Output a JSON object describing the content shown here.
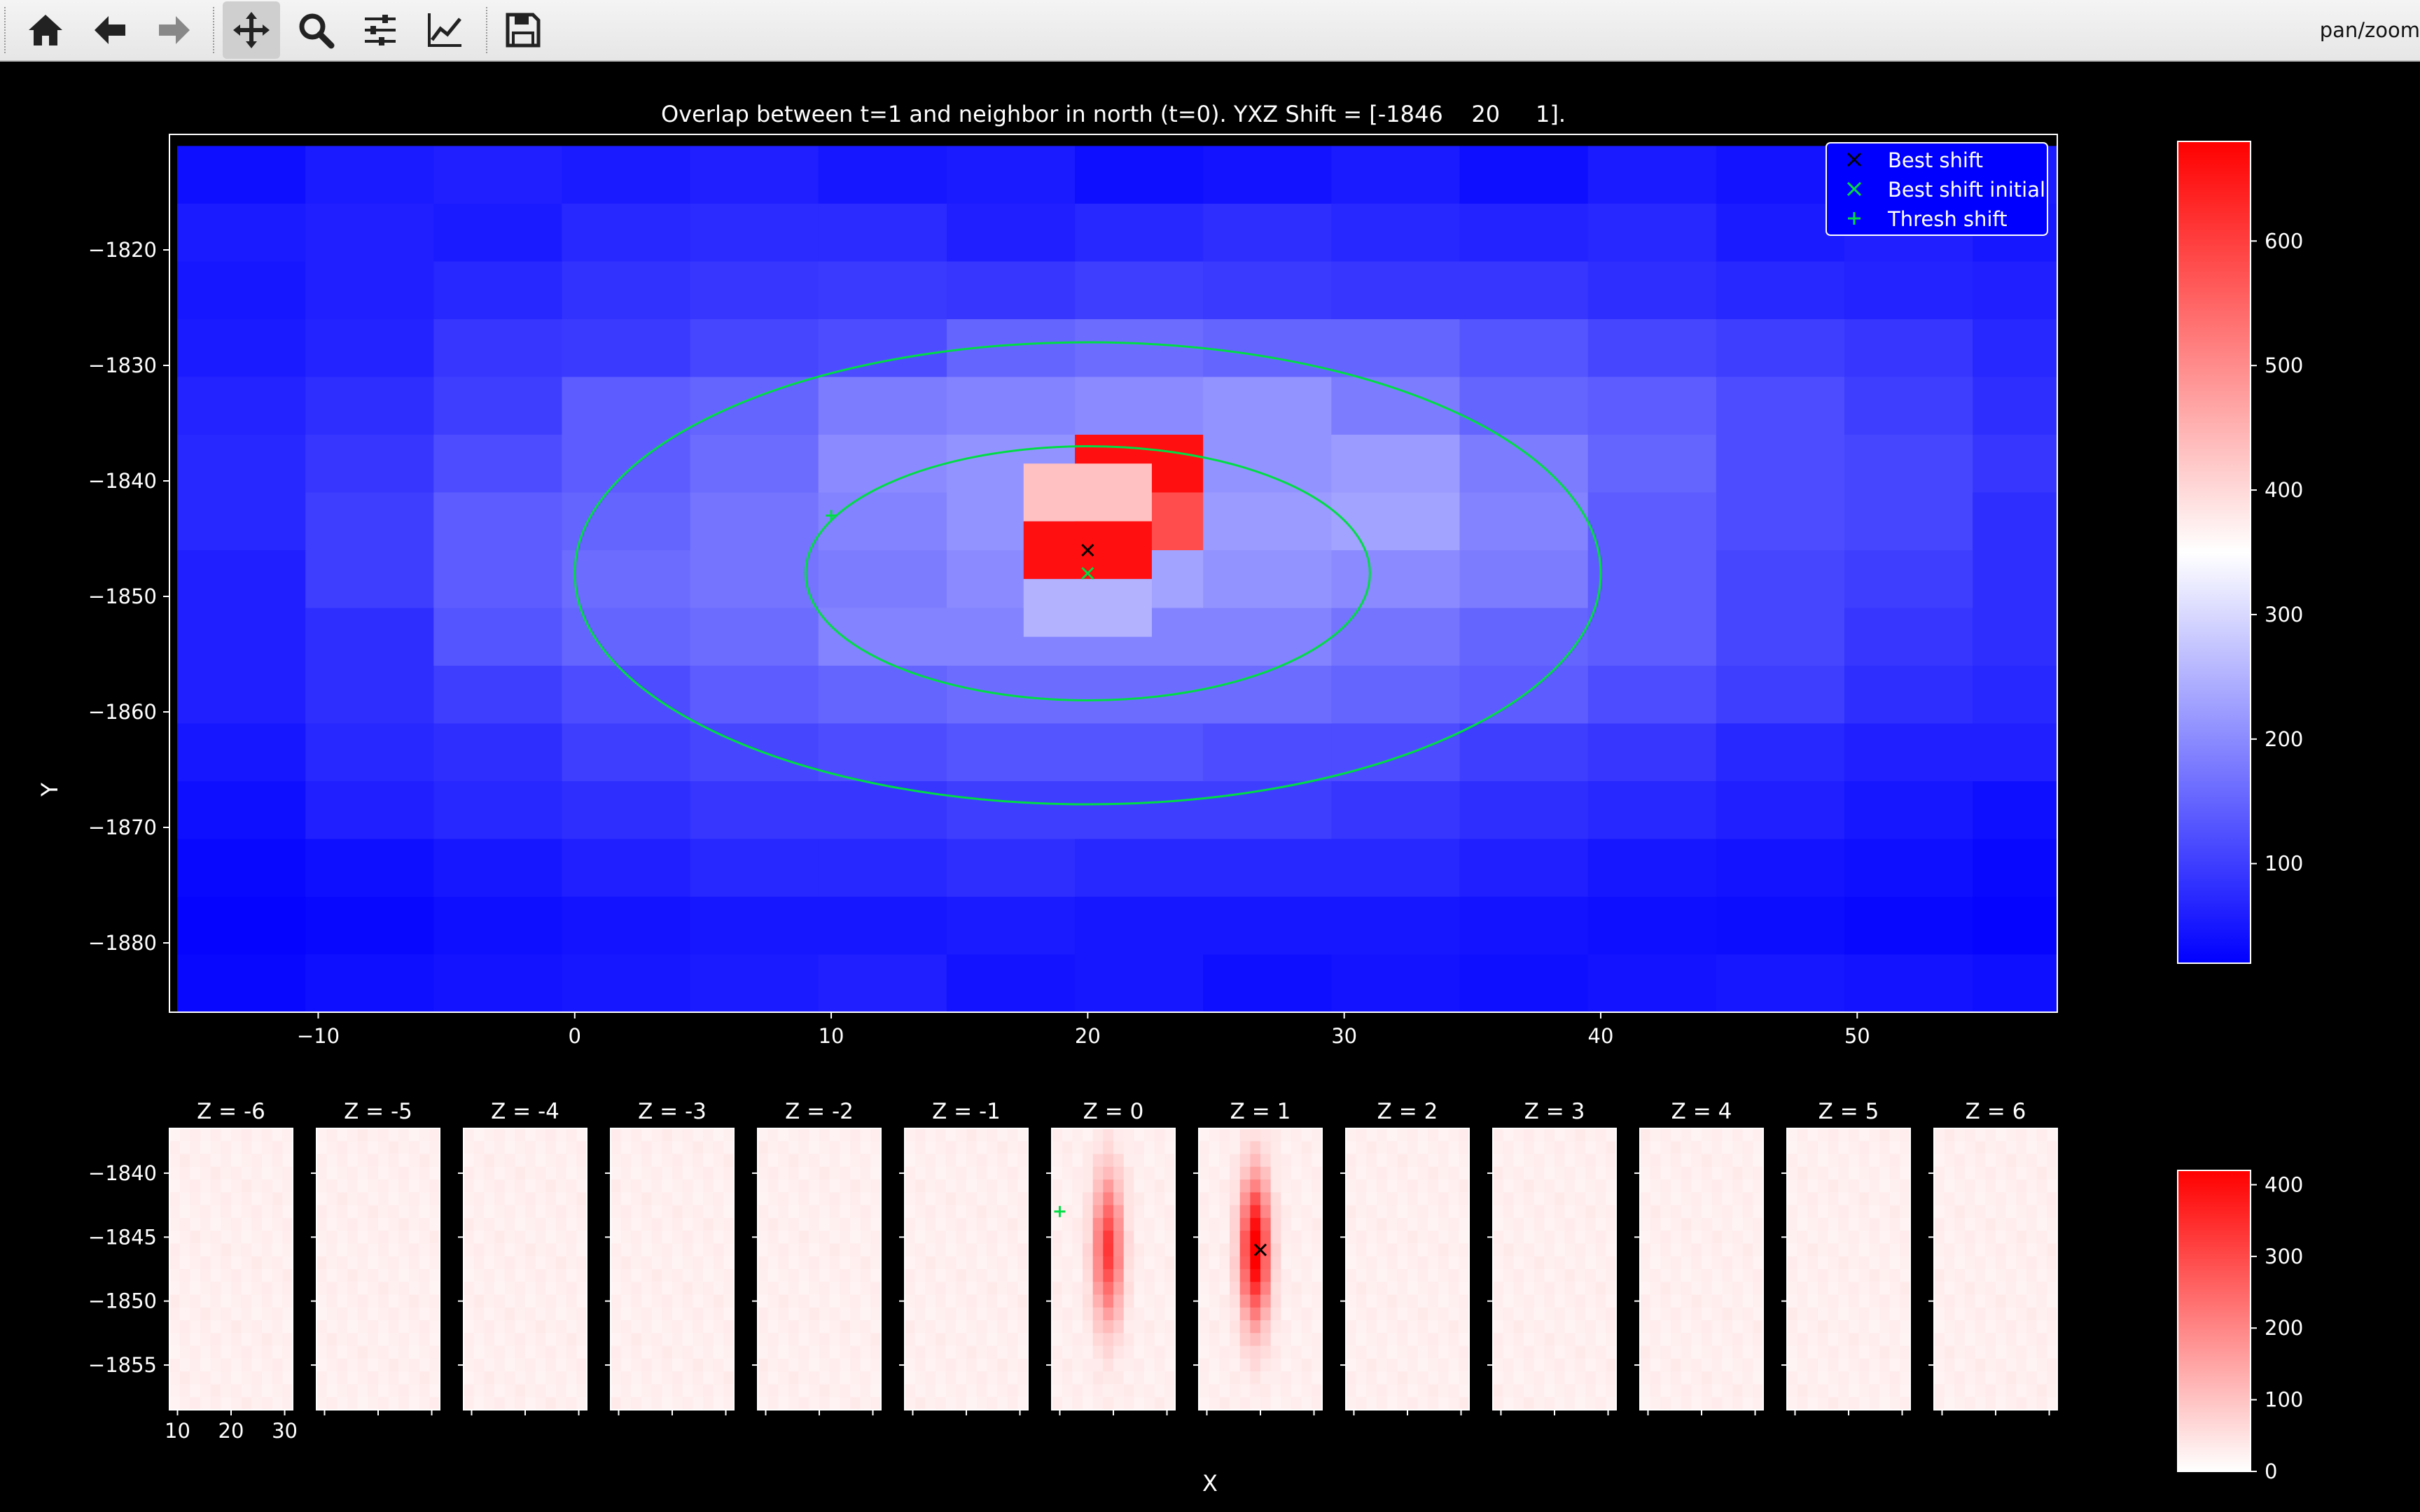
{
  "toolbar": {
    "buttons": [
      {
        "name": "home-button",
        "icon": "home-icon",
        "active": false
      },
      {
        "name": "back-button",
        "icon": "arrow-left-icon",
        "active": false
      },
      {
        "name": "forward-button",
        "icon": "arrow-right-icon",
        "active": false
      },
      {
        "name": "pan-button",
        "icon": "move-icon",
        "active": true
      },
      {
        "name": "zoom-button",
        "icon": "magnifier-icon",
        "active": false
      },
      {
        "name": "configure-subplots-button",
        "icon": "sliders-icon",
        "active": false
      },
      {
        "name": "edit-axes-button",
        "icon": "line-chart-icon",
        "active": false
      },
      {
        "name": "save-button",
        "icon": "floppy-disk-icon",
        "active": false
      }
    ],
    "mode_label": "pan/zoom"
  },
  "colors": {
    "colormap": [
      "#0000ff",
      "#ffffff",
      "#ff0000"
    ],
    "ellipse": "#00dd44",
    "best_shift_marker": "#000000",
    "initial_marker": "#00dd44",
    "thresh_marker": "#00dd44"
  },
  "chart_data": [
    {
      "type": "heatmap",
      "title": "Overlap between t=1 and neighbor in north (t=0). YXZ Shift = [-1846    20     1].",
      "xlabel": "",
      "ylabel": "Y",
      "xlim": [
        -15.8,
        57.8
      ],
      "ylim": [
        -1886,
        -1810
      ],
      "xticks": [
        -10,
        0,
        10,
        20,
        30,
        40,
        50
      ],
      "yticks": [
        -1820,
        -1830,
        -1840,
        -1850,
        -1860,
        -1870,
        -1880
      ],
      "cell": {
        "x0": -15.5,
        "dx": 5,
        "y0": -1811,
        "dy": -5
      },
      "values": [
        [
          40,
          55,
          60,
          55,
          60,
          50,
          55,
          40,
          45,
          55,
          40,
          55,
          45,
          50,
          55
        ],
        [
          55,
          60,
          55,
          70,
          75,
          75,
          60,
          70,
          80,
          70,
          65,
          70,
          55,
          60,
          50
        ],
        [
          50,
          60,
          70,
          85,
          90,
          95,
          90,
          100,
          95,
          90,
          90,
          80,
          70,
          65,
          60
        ],
        [
          55,
          65,
          90,
          95,
          110,
          120,
          150,
          160,
          150,
          150,
          130,
          110,
          100,
          90,
          70
        ],
        [
          65,
          80,
          100,
          140,
          150,
          180,
          190,
          200,
          210,
          180,
          150,
          140,
          120,
          100,
          80
        ],
        [
          70,
          90,
          120,
          140,
          160,
          200,
          210,
          660,
          210,
          220,
          180,
          150,
          120,
          110,
          90
        ],
        [
          70,
          100,
          140,
          150,
          170,
          190,
          210,
          580,
          220,
          230,
          190,
          140,
          120,
          110,
          80
        ],
        [
          60,
          100,
          140,
          160,
          170,
          180,
          200,
          230,
          210,
          200,
          180,
          140,
          110,
          100,
          80
        ],
        [
          60,
          80,
          130,
          150,
          160,
          190,
          190,
          190,
          190,
          170,
          150,
          140,
          110,
          90,
          80
        ],
        [
          60,
          80,
          100,
          120,
          140,
          150,
          160,
          160,
          160,
          150,
          140,
          120,
          100,
          80,
          70
        ],
        [
          50,
          70,
          80,
          100,
          110,
          120,
          130,
          130,
          120,
          120,
          100,
          90,
          70,
          60,
          60
        ],
        [
          40,
          60,
          70,
          80,
          90,
          90,
          100,
          100,
          100,
          90,
          80,
          70,
          60,
          50,
          40
        ],
        [
          30,
          40,
          50,
          60,
          70,
          70,
          80,
          70,
          70,
          70,
          60,
          50,
          45,
          40,
          30
        ],
        [
          25,
          30,
          40,
          45,
          50,
          50,
          55,
          50,
          50,
          50,
          45,
          40,
          35,
          30,
          25
        ],
        [
          30,
          40,
          45,
          50,
          55,
          60,
          45,
          50,
          40,
          45,
          40,
          45,
          50,
          45,
          40
        ]
      ],
      "overrides": [
        {
          "x": 20,
          "y": -1841,
          "v": 430
        },
        {
          "x": 20,
          "y": -1846,
          "v": 660
        },
        {
          "x": 20,
          "y": -1851,
          "v": 250
        }
      ],
      "vmin": 20,
      "vmax": 680,
      "ellipses": [
        {
          "cx": 20,
          "cy": -1848,
          "rx": 11,
          "ry": 11
        },
        {
          "cx": 20,
          "cy": -1848,
          "rx": 20,
          "ry": 20
        }
      ],
      "markers": [
        {
          "name": "best-shift-marker",
          "label": "Best shift",
          "symbol": "x",
          "x": 20,
          "y": -1846,
          "color": "#000000"
        },
        {
          "name": "best-shift-initial-marker",
          "label": "Best shift initial",
          "symbol": "x",
          "x": 20,
          "y": -1848,
          "color": "#00dd44"
        },
        {
          "name": "thresh-shift-marker",
          "label": "Thresh shift",
          "symbol": "+",
          "x": 10,
          "y": -1843,
          "color": "#00dd44"
        }
      ],
      "legend": {
        "placement": "top-right",
        "entries": [
          "Best shift",
          "Best shift initial",
          "Thresh shift"
        ]
      },
      "colorbar": {
        "ticks": [
          100,
          200,
          300,
          400,
          500,
          600
        ]
      }
    },
    {
      "type": "heatmap",
      "xlabel": "X",
      "ylabel": "",
      "xlim": [
        8.5,
        31.5
      ],
      "ylim": [
        -1858.5,
        -1836.5
      ],
      "xticks": [
        10,
        20,
        30
      ],
      "yticks": [
        -1840,
        -1845,
        -1850,
        -1855
      ],
      "vmin": 0,
      "vmax": 420,
      "panels": [
        {
          "title": "Z = -6",
          "peak": 0
        },
        {
          "title": "Z = -5",
          "peak": 0
        },
        {
          "title": "Z = -4",
          "peak": 0
        },
        {
          "title": "Z = -3",
          "peak": 0
        },
        {
          "title": "Z = -2",
          "peak": 0
        },
        {
          "title": "Z = -1",
          "peak": 0
        },
        {
          "title": "Z = 0",
          "peak": 300
        },
        {
          "title": "Z = 1",
          "peak": 420
        },
        {
          "title": "Z = 2",
          "peak": 0
        },
        {
          "title": "Z = 3",
          "peak": 0
        },
        {
          "title": "Z = 4",
          "peak": 0
        },
        {
          "title": "Z = 5",
          "peak": 0
        },
        {
          "title": "Z = 6",
          "peak": 0
        }
      ],
      "peak_center": {
        "x": 19,
        "y": -1846
      },
      "markers": [
        {
          "panel": "Z = 0",
          "symbol": "+",
          "x": 10,
          "y": -1843,
          "color": "#00dd44"
        },
        {
          "panel": "Z = 1",
          "symbol": "x",
          "x": 20,
          "y": -1846,
          "color": "#000000"
        }
      ],
      "colorbar": {
        "ticks": [
          0,
          100,
          200,
          300,
          400
        ]
      }
    }
  ]
}
